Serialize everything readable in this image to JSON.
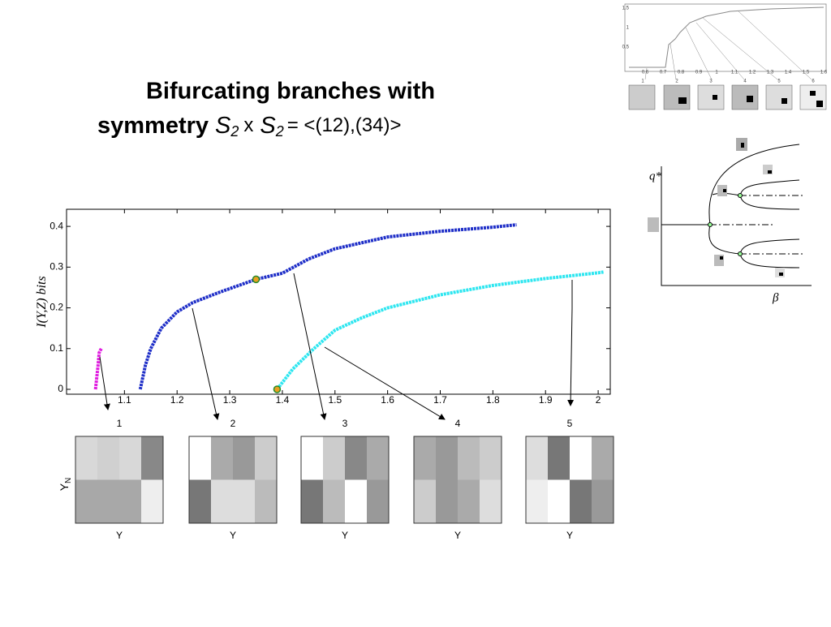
{
  "slide": {
    "title_line1": "Bifurcating branches with",
    "title_line2": "symmetry",
    "group": "S",
    "group_sub": "2",
    "times": "x",
    "rest": "= <(12),(34)>"
  },
  "chart_data": {
    "type": "line",
    "y_label": "I(Y,Z) bits",
    "xlim": [
      0.99,
      2.023
    ],
    "ylim": [
      -0.012,
      0.442
    ],
    "xticks": [
      1.1,
      1.2,
      1.3,
      1.4,
      1.5,
      1.6,
      1.7,
      1.8,
      1.9,
      2
    ],
    "yticks": [
      0,
      0.1,
      0.2,
      0.3,
      0.4
    ],
    "series": [
      {
        "color": "#e01ee0",
        "x": [
          1.045,
          1.05,
          1.052,
          1.056
        ],
        "values": [
          0,
          0.06,
          0.09,
          0.1
        ]
      },
      {
        "color": "#1f2fc8",
        "x": [
          1.13,
          1.14,
          1.15,
          1.17,
          1.2,
          1.23,
          1.28,
          1.35,
          1.4,
          1.45,
          1.5,
          1.6,
          1.7,
          1.8,
          1.845
        ],
        "values": [
          0,
          0.06,
          0.1,
          0.15,
          0.19,
          0.213,
          0.238,
          0.27,
          0.285,
          0.32,
          0.345,
          0.374,
          0.388,
          0.398,
          0.404
        ]
      },
      {
        "color": "#2ee6f0",
        "x": [
          1.39,
          1.42,
          1.46,
          1.5,
          1.55,
          1.6,
          1.7,
          1.8,
          1.9,
          2.0,
          2.01
        ],
        "values": [
          0,
          0.05,
          0.1,
          0.145,
          0.175,
          0.2,
          0.232,
          0.255,
          0.272,
          0.286,
          0.288
        ]
      }
    ],
    "bifurcation_points": {
      "x": [
        1.35,
        1.39
      ],
      "values": [
        0.27,
        0
      ]
    }
  },
  "panels": {
    "labels": [
      "1",
      "2",
      "3",
      "4",
      "5"
    ],
    "y_label": "Y",
    "y_label_sub": "N",
    "x_label": "Y"
  },
  "inset": {
    "y_label": "q*",
    "x_label": "β",
    "thumb_xticks": [
      "0.6",
      "0.7",
      "0.8",
      "0.9",
      "1",
      "1.1",
      "1.2",
      "1.3",
      "1.4",
      "1.5",
      "1.6"
    ],
    "thumb_yticks": [
      "1.5",
      "1",
      "0.5"
    ],
    "thumb_labels": [
      "1",
      "2",
      "3",
      "4",
      "5",
      "6"
    ]
  }
}
